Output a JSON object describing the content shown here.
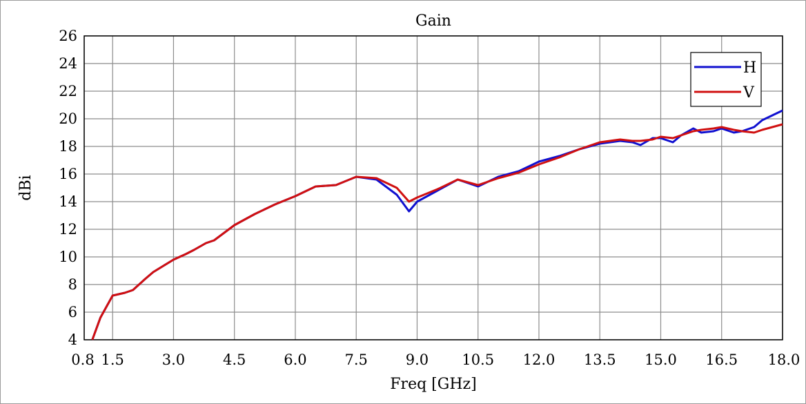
{
  "chart_data": {
    "type": "line",
    "title": "Gain",
    "xlabel": "Freq [GHz]",
    "ylabel": "dBi",
    "xlim": [
      0.8,
      18.0
    ],
    "ylim": [
      4,
      26
    ],
    "x_ticks": [
      0.8,
      1.5,
      3.0,
      4.5,
      6.0,
      7.5,
      9.0,
      10.5,
      12.0,
      13.5,
      15.0,
      16.5,
      18.0
    ],
    "x_tick_labels": [
      "0.8",
      "1.5",
      "3.0",
      "4.5",
      "6.0",
      "7.5",
      "9.0",
      "10.5",
      "12.0",
      "13.5",
      "15.0",
      "16.5",
      "18.0"
    ],
    "y_ticks": [
      4,
      6,
      8,
      10,
      12,
      14,
      16,
      18,
      20,
      22,
      24,
      26
    ],
    "y_tick_labels": [
      "4",
      "6",
      "8",
      "10",
      "12",
      "14",
      "16",
      "18",
      "20",
      "22",
      "24",
      "26"
    ],
    "grid": true,
    "legend_position": "top-right",
    "series": [
      {
        "name": "H",
        "color": "#1010d0",
        "x": [
          1.0,
          1.2,
          1.5,
          1.8,
          2.0,
          2.3,
          2.5,
          3.0,
          3.3,
          3.5,
          3.8,
          4.0,
          4.5,
          5.0,
          5.5,
          6.0,
          6.5,
          7.0,
          7.5,
          8.0,
          8.5,
          8.8,
          9.0,
          9.5,
          10.0,
          10.5,
          11.0,
          11.5,
          12.0,
          12.5,
          13.0,
          13.5,
          14.0,
          14.3,
          14.5,
          14.8,
          15.0,
          15.3,
          15.5,
          15.8,
          16.0,
          16.3,
          16.5,
          16.8,
          17.0,
          17.3,
          17.5,
          18.0
        ],
        "y": [
          4.0,
          5.6,
          7.2,
          7.4,
          7.6,
          8.4,
          8.9,
          9.8,
          10.2,
          10.5,
          11.0,
          11.2,
          12.3,
          13.1,
          13.8,
          14.4,
          15.1,
          15.2,
          15.8,
          15.6,
          14.5,
          13.3,
          14.0,
          14.8,
          15.6,
          15.1,
          15.8,
          16.2,
          16.9,
          17.3,
          17.8,
          18.2,
          18.4,
          18.3,
          18.1,
          18.6,
          18.6,
          18.3,
          18.8,
          19.3,
          19.0,
          19.1,
          19.3,
          19.0,
          19.1,
          19.4,
          19.9,
          20.6
        ]
      },
      {
        "name": "V",
        "color": "#d01010",
        "x": [
          1.0,
          1.2,
          1.5,
          1.8,
          2.0,
          2.3,
          2.5,
          3.0,
          3.3,
          3.5,
          3.8,
          4.0,
          4.5,
          5.0,
          5.5,
          6.0,
          6.5,
          7.0,
          7.5,
          8.0,
          8.5,
          8.8,
          9.0,
          9.5,
          10.0,
          10.5,
          11.0,
          11.5,
          12.0,
          12.5,
          13.0,
          13.5,
          14.0,
          14.3,
          14.5,
          14.8,
          15.0,
          15.3,
          15.5,
          15.8,
          16.0,
          16.3,
          16.5,
          16.8,
          17.0,
          17.3,
          17.5,
          18.0
        ],
        "y": [
          4.0,
          5.6,
          7.2,
          7.4,
          7.6,
          8.4,
          8.9,
          9.8,
          10.2,
          10.5,
          11.0,
          11.2,
          12.3,
          13.1,
          13.8,
          14.4,
          15.1,
          15.2,
          15.8,
          15.7,
          15.0,
          14.0,
          14.3,
          14.9,
          15.6,
          15.2,
          15.7,
          16.1,
          16.7,
          17.2,
          17.8,
          18.3,
          18.5,
          18.4,
          18.4,
          18.5,
          18.7,
          18.6,
          18.8,
          19.1,
          19.2,
          19.3,
          19.4,
          19.2,
          19.1,
          19.0,
          19.2,
          19.6
        ]
      }
    ]
  }
}
